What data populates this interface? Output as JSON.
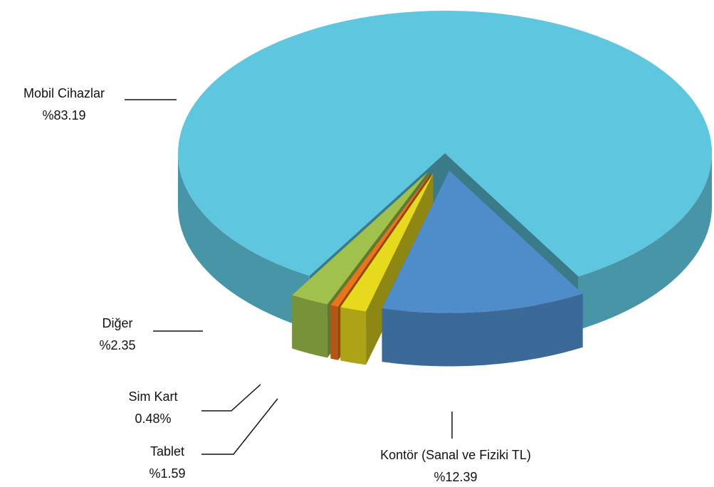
{
  "chart_data": {
    "type": "pie",
    "categories": [
      "Mobil Cihazlar",
      "Kontör (Sanal ve Fiziki TL)",
      "Tablet",
      "Sim Kart",
      "Diğer"
    ],
    "values": [
      83.19,
      12.39,
      1.59,
      0.48,
      2.35
    ],
    "value_labels": [
      "%83.19",
      "%12.39",
      "%1.59",
      "0.48%",
      "%2.35"
    ],
    "colors": [
      "#5ec6de",
      "#4f8cca",
      "#e6d91e",
      "#ea741c",
      "#a0c24c"
    ]
  }
}
